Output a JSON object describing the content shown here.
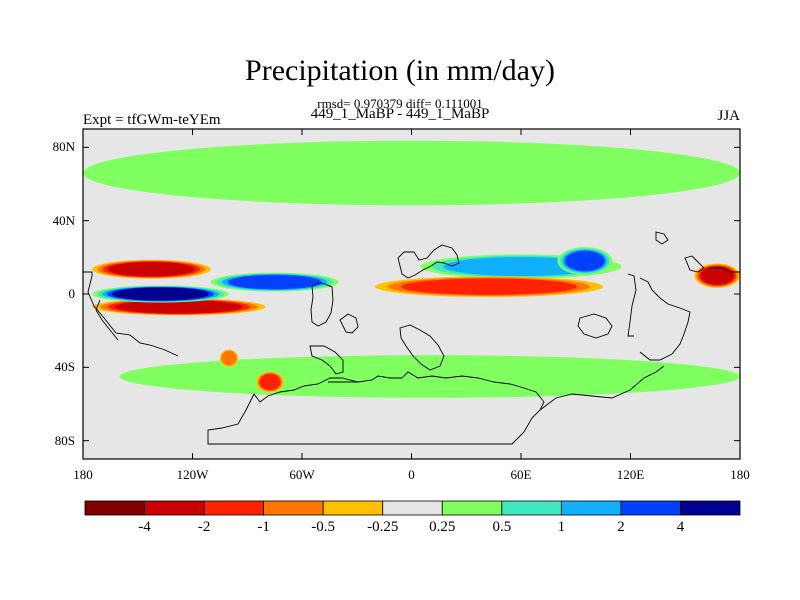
{
  "header": {
    "title": "Precipitation (in mm/day)",
    "stats": "rmsd= 0.970379 diff= 0.111001",
    "experiment_names": "449_1_MaBP - 449_1_MaBP",
    "expt_label": "Expt = tfGWm-teYEm",
    "season": "JJA"
  },
  "axes": {
    "y_ticks": [
      {
        "label": "80N",
        "lat": 80
      },
      {
        "label": "40N",
        "lat": 40
      },
      {
        "label": "0",
        "lat": 0
      },
      {
        "label": "40S",
        "lat": -40
      },
      {
        "label": "80S",
        "lat": -80
      }
    ],
    "x_ticks": [
      {
        "label": "180",
        "lon": -180
      },
      {
        "label": "120W",
        "lon": -120
      },
      {
        "label": "60W",
        "lon": -60
      },
      {
        "label": "0",
        "lon": 0
      },
      {
        "label": "60E",
        "lon": 60
      },
      {
        "label": "120E",
        "lon": 120
      },
      {
        "label": "180",
        "lon": 180
      }
    ],
    "lon_range": [
      -180,
      180
    ],
    "lat_range": [
      -90,
      90
    ]
  },
  "colorbar": {
    "colors": [
      "#800000",
      "#cc0000",
      "#ff2200",
      "#ff7700",
      "#ffc000",
      "#e6e6e6",
      "#80ff60",
      "#40e8c0",
      "#10b0ff",
      "#0040ff",
      "#000090"
    ],
    "labels": [
      "-4",
      "-2",
      "-1",
      "-0.5",
      "-0.25",
      "0.25",
      "0.5",
      "1",
      "2",
      "4"
    ]
  },
  "chart_data": {
    "type": "heatmap",
    "title": "Precipitation (in mm/day)",
    "variable": "precipitation difference",
    "units": "mm/day",
    "levels": [
      -4,
      -2,
      -1,
      -0.5,
      -0.25,
      0.25,
      0.5,
      1,
      2,
      4
    ],
    "background_value_range": [
      -0.25,
      0.25
    ],
    "features": [
      {
        "name": "wet band tropical Pacific",
        "lon": [
          -175,
          -100
        ],
        "lat": [
          -3,
          3
        ],
        "value": 5
      },
      {
        "name": "wet band central Pacific",
        "lon": [
          -110,
          -40
        ],
        "lat": [
          3,
          10
        ],
        "value": 2.5
      },
      {
        "name": "wet band Africa to Asia",
        "lon": [
          5,
          115
        ],
        "lat": [
          10,
          20
        ],
        "value": 2
      },
      {
        "name": "wet Bay of Bengal",
        "lon": [
          80,
          110
        ],
        "lat": [
          12,
          24
        ],
        "value": 4
      },
      {
        "name": "dry band north Pacific",
        "lon": [
          -175,
          -110
        ],
        "lat": [
          10,
          17
        ],
        "value": -4
      },
      {
        "name": "dry band south Pacific",
        "lon": [
          -175,
          -80
        ],
        "lat": [
          -10,
          -4
        ],
        "value": -3
      },
      {
        "name": "dry band Africa Indian Ocean",
        "lon": [
          -20,
          105
        ],
        "lat": [
          0,
          8
        ],
        "value": -2
      },
      {
        "name": "dry West Pacific",
        "lon": [
          155,
          180
        ],
        "lat": [
          5,
          15
        ],
        "value": -4
      },
      {
        "name": "wet high latitude north",
        "lon": [
          -180,
          180
        ],
        "lat": [
          50,
          82
        ],
        "value": 0.5
      },
      {
        "name": "wet southern ocean band",
        "lon": [
          -160,
          180
        ],
        "lat": [
          -55,
          -35
        ],
        "value": 0.5
      },
      {
        "name": "dry south Atlantic spot",
        "lon": [
          -85,
          -70
        ],
        "lat": [
          -52,
          -44
        ],
        "value": -1.5
      },
      {
        "name": "dry southeast Pacific spot",
        "lon": [
          -105,
          -95
        ],
        "lat": [
          -38,
          -32
        ],
        "value": -1
      }
    ]
  }
}
